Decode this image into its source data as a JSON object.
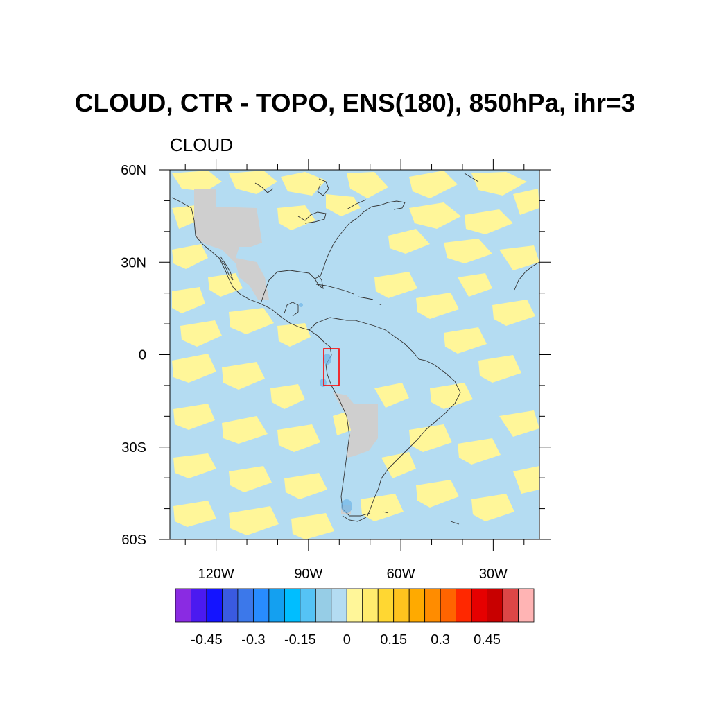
{
  "title": "CLOUD, CTR - TOPO, ENS(180), 850hPa, ihr=3",
  "subtitle": "CLOUD",
  "map": {
    "lat_ticks": [
      "60N",
      "30N",
      "0",
      "30S",
      "60S"
    ],
    "lon_ticks": [
      "120W",
      "90W",
      "60W",
      "30W"
    ],
    "lon_range": [
      -135,
      -15
    ],
    "lat_range": [
      -60,
      60
    ],
    "colors": {
      "small_negative": "#b4dcf2",
      "small_positive": "#fff699",
      "masked_terrain": "#cfcfcf",
      "marked_region": "#ff0000"
    },
    "marked_region": {
      "lon": [
        -80,
        -75
      ],
      "lat": [
        -10,
        2
      ]
    }
  },
  "colorbar": {
    "colors": [
      "#8a2be2",
      "#4b1af0",
      "#1414ff",
      "#3a5ae0",
      "#3c78ea",
      "#288cff",
      "#14a0f0",
      "#00beff",
      "#55c3f5",
      "#96cde6",
      "#b4dcf2",
      "#fff699",
      "#ffeb6e",
      "#ffd732",
      "#ffc31e",
      "#ffaa00",
      "#ff8c00",
      "#ff6400",
      "#ff2800",
      "#e60000",
      "#c80000",
      "#dc4646",
      "#ffb4b4"
    ],
    "labels": [
      "-0.45",
      "-0.3",
      "-0.15",
      "0",
      "0.15",
      "0.3",
      "0.45"
    ]
  }
}
